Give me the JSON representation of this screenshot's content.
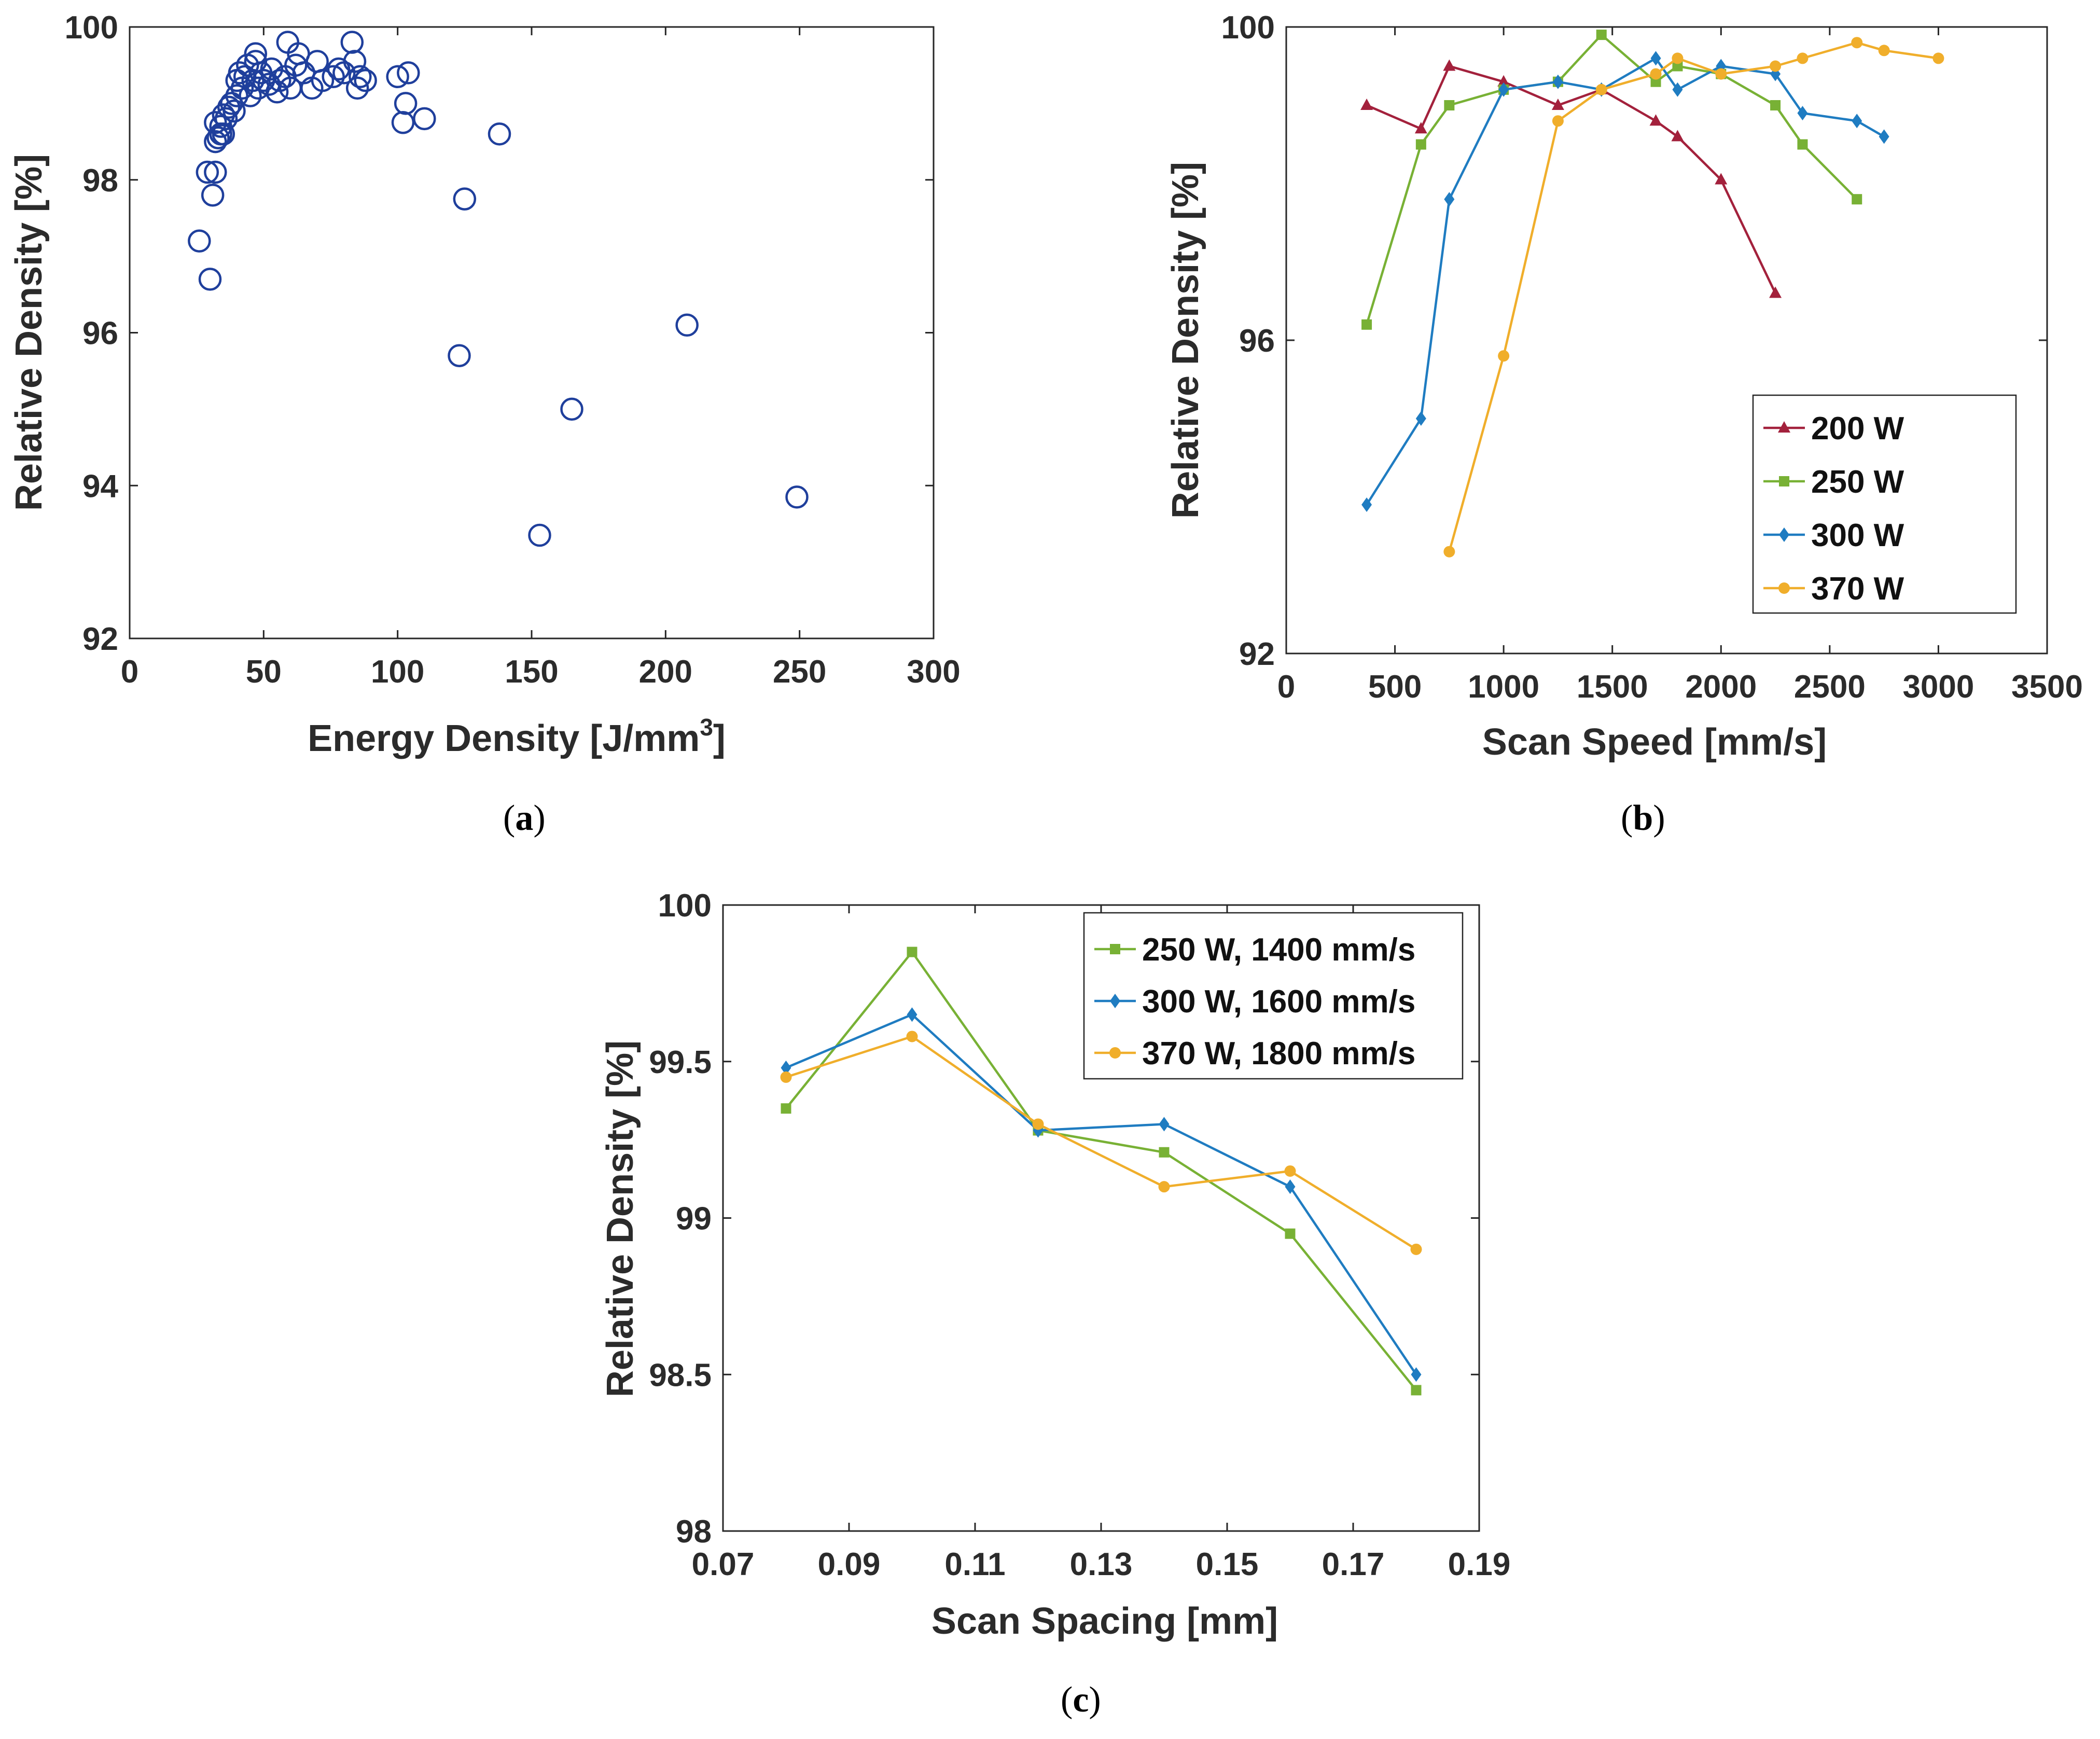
{
  "chart_data": [
    {
      "id": "a",
      "type": "scatter",
      "caption": "a",
      "xlabel": "Energy Density [J/mm",
      "xlabel_sup": "3",
      "xlabel_end": "]",
      "ylabel": "Relative Density [%]",
      "xlim": [
        0,
        300
      ],
      "ylim": [
        92,
        100
      ],
      "xticks": [
        "0",
        "50",
        "100",
        "150",
        "200",
        "250",
        "300"
      ],
      "yticks": [
        "92",
        "94",
        "96",
        "98",
        "100"
      ],
      "grid": false,
      "colors": {
        "marker": "#1f3f9c"
      },
      "points": [
        [
          26,
          97.2
        ],
        [
          30,
          96.7
        ],
        [
          29,
          98.1
        ],
        [
          31,
          97.8
        ],
        [
          32,
          98.1
        ],
        [
          32,
          98.5
        ],
        [
          32,
          98.75
        ],
        [
          33,
          98.55
        ],
        [
          34,
          98.6
        ],
        [
          34,
          98.7
        ],
        [
          35,
          98.6
        ],
        [
          35,
          98.85
        ],
        [
          36,
          98.8
        ],
        [
          37,
          98.95
        ],
        [
          38,
          99.0
        ],
        [
          39,
          98.9
        ],
        [
          40,
          99.1
        ],
        [
          40,
          99.3
        ],
        [
          41,
          99.4
        ],
        [
          42,
          99.2
        ],
        [
          43,
          99.35
        ],
        [
          44,
          99.5
        ],
        [
          45,
          99.1
        ],
        [
          46,
          99.3
        ],
        [
          47,
          99.55
        ],
        [
          47,
          99.65
        ],
        [
          48,
          99.2
        ],
        [
          49,
          99.4
        ],
        [
          50,
          99.3
        ],
        [
          52,
          99.25
        ],
        [
          53,
          99.45
        ],
        [
          55,
          99.15
        ],
        [
          56,
          99.3
        ],
        [
          58,
          99.35
        ],
        [
          59,
          99.8
        ],
        [
          60,
          99.2
        ],
        [
          62,
          99.5
        ],
        [
          63,
          99.65
        ],
        [
          65,
          99.4
        ],
        [
          68,
          99.2
        ],
        [
          70,
          99.55
        ],
        [
          72,
          99.3
        ],
        [
          76,
          99.35
        ],
        [
          78,
          99.45
        ],
        [
          80,
          99.4
        ],
        [
          83,
          99.8
        ],
        [
          84,
          99.55
        ],
        [
          85,
          99.2
        ],
        [
          86,
          99.35
        ],
        [
          88,
          99.3
        ],
        [
          100,
          99.35
        ],
        [
          104,
          99.4
        ],
        [
          103,
          99.0
        ],
        [
          102,
          98.75
        ],
        [
          110,
          98.8
        ],
        [
          123,
          95.7
        ],
        [
          125,
          97.75
        ],
        [
          138,
          98.6
        ],
        [
          153,
          93.35
        ],
        [
          165,
          95.0
        ],
        [
          208,
          96.1
        ],
        [
          249,
          93.85
        ]
      ]
    },
    {
      "id": "b",
      "type": "line",
      "caption": "b",
      "xlabel": "Scan Speed [mm/s]",
      "ylabel": "Relative Density [%]",
      "xlim": [
        0,
        3500
      ],
      "ylim": [
        92,
        100
      ],
      "xticks": [
        "0",
        "500",
        "1000",
        "1500",
        "2000",
        "2500",
        "3000",
        "3500"
      ],
      "yticks": [
        "92",
        "96",
        "100"
      ],
      "grid": false,
      "legend_position": "right",
      "series": [
        {
          "name": "200 W",
          "color": "#a3213c",
          "marker": "triangle",
          "points": [
            [
              370,
              99.0
            ],
            [
              620,
              98.7
            ],
            [
              750,
              99.5
            ],
            [
              1000,
              99.3
            ],
            [
              1250,
              99.0
            ],
            [
              1450,
              99.2
            ],
            [
              1700,
              98.8
            ],
            [
              1800,
              98.6
            ],
            [
              2000,
              98.05
            ],
            [
              2250,
              96.6
            ]
          ]
        },
        {
          "name": "250 W",
          "color": "#78b135",
          "marker": "square",
          "points": [
            [
              370,
              96.2
            ],
            [
              620,
              98.5
            ],
            [
              750,
              99.0
            ],
            [
              1000,
              99.2
            ],
            [
              1250,
              99.3
            ],
            [
              1450,
              99.9
            ],
            [
              1700,
              99.3
            ],
            [
              1800,
              99.5
            ],
            [
              2000,
              99.4
            ],
            [
              2250,
              99.0
            ],
            [
              2375,
              98.5
            ],
            [
              2625,
              97.8
            ]
          ]
        },
        {
          "name": "300 W",
          "color": "#1f7cc1",
          "marker": "diamond",
          "points": [
            [
              370,
              93.9
            ],
            [
              620,
              95.0
            ],
            [
              750,
              97.8
            ],
            [
              1000,
              99.2
            ],
            [
              1250,
              99.3
            ],
            [
              1450,
              99.2
            ],
            [
              1700,
              99.6
            ],
            [
              1800,
              99.2
            ],
            [
              2000,
              99.5
            ],
            [
              2250,
              99.4
            ],
            [
              2375,
              98.9
            ],
            [
              2625,
              98.8
            ],
            [
              2750,
              98.6
            ]
          ]
        },
        {
          "name": "370 W",
          "color": "#f0ae2b",
          "marker": "circle",
          "points": [
            [
              750,
              93.3
            ],
            [
              1000,
              95.8
            ],
            [
              1250,
              98.8
            ],
            [
              1450,
              99.2
            ],
            [
              1700,
              99.4
            ],
            [
              1800,
              99.6
            ],
            [
              2000,
              99.4
            ],
            [
              2250,
              99.5
            ],
            [
              2375,
              99.6
            ],
            [
              2625,
              99.8
            ],
            [
              2750,
              99.7
            ],
            [
              3000,
              99.6
            ]
          ]
        }
      ]
    },
    {
      "id": "c",
      "type": "line",
      "caption": "c",
      "xlabel": "Scan Spacing [mm]",
      "ylabel": "Relative Density [%]",
      "xlim": [
        0.07,
        0.19
      ],
      "ylim": [
        98,
        100
      ],
      "xticks": [
        "0.07",
        "0.09",
        "0.11",
        "0.13",
        "0.15",
        "0.17",
        "0.19"
      ],
      "yticks": [
        "98",
        "98.5",
        "99",
        "99.5",
        "100"
      ],
      "grid": false,
      "legend_position": "top-right",
      "series": [
        {
          "name": "250 W, 1400 mm/s",
          "color": "#78b135",
          "marker": "square",
          "points": [
            [
              0.08,
              99.35
            ],
            [
              0.1,
              99.85
            ],
            [
              0.12,
              99.28
            ],
            [
              0.14,
              99.21
            ],
            [
              0.16,
              98.95
            ],
            [
              0.18,
              98.45
            ]
          ]
        },
        {
          "name": "300 W, 1600 mm/s",
          "color": "#1f7cc1",
          "marker": "diamond",
          "points": [
            [
              0.08,
              99.48
            ],
            [
              0.1,
              99.65
            ],
            [
              0.12,
              99.28
            ],
            [
              0.14,
              99.3
            ],
            [
              0.16,
              99.1
            ],
            [
              0.18,
              98.5
            ]
          ]
        },
        {
          "name": "370 W, 1800 mm/s",
          "color": "#f0ae2b",
          "marker": "circle",
          "points": [
            [
              0.08,
              99.45
            ],
            [
              0.1,
              99.58
            ],
            [
              0.12,
              99.3
            ],
            [
              0.14,
              99.1
            ],
            [
              0.16,
              99.15
            ],
            [
              0.18,
              98.9
            ]
          ]
        }
      ]
    }
  ]
}
